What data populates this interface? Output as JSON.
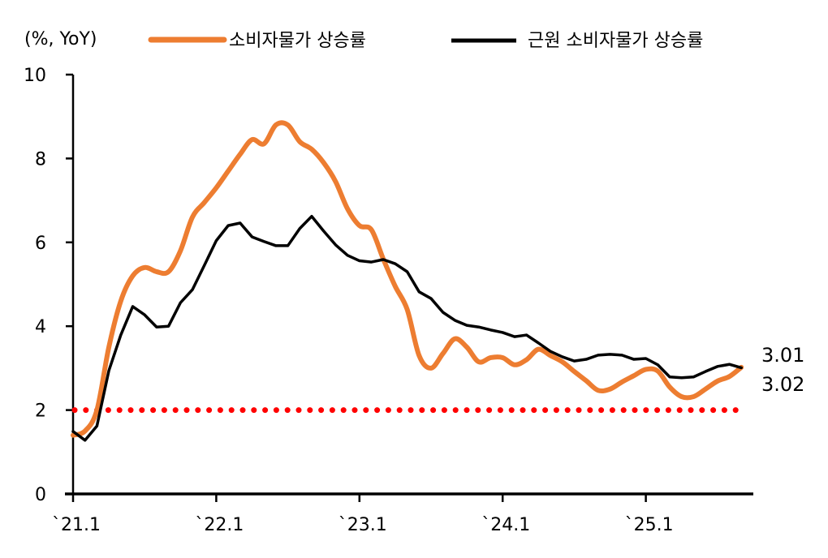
{
  "chart_data": {
    "type": "line",
    "unit_label": "(%, YoY)",
    "x_tick_labels": [
      "`21.1",
      "`22.1",
      "`23.1",
      "`24.1",
      "`25.1"
    ],
    "x_start": "2021-01",
    "x_end": "2025-09",
    "x_frequency": "monthly",
    "y_ticks": [
      0,
      2,
      4,
      6,
      8,
      10
    ],
    "ylim": [
      0,
      10
    ],
    "grid": false,
    "legend_position": "top",
    "reference_line": {
      "value": 2,
      "color": "#ff0000",
      "style": "dotted"
    },
    "series": [
      {
        "name": "소비자물가 상승률",
        "color": "#ed7d31",
        "smooth": true,
        "end_label": "3.02",
        "values": [
          1.4,
          1.5,
          2.0,
          3.5,
          4.6,
          5.2,
          5.4,
          5.3,
          5.3,
          5.8,
          6.6,
          6.95,
          7.3,
          7.7,
          8.1,
          8.45,
          8.35,
          8.8,
          8.8,
          8.4,
          8.22,
          7.9,
          7.45,
          6.8,
          6.4,
          6.3,
          5.6,
          4.95,
          4.4,
          3.3,
          3.0,
          3.35,
          3.7,
          3.5,
          3.15,
          3.25,
          3.25,
          3.08,
          3.2,
          3.45,
          3.3,
          3.15,
          2.92,
          2.7,
          2.47,
          2.5,
          2.67,
          2.82,
          2.97,
          2.93,
          2.55,
          2.32,
          2.32,
          2.5,
          2.69,
          2.8,
          3.02
        ]
      },
      {
        "name": "근원 소비자물가 상승률",
        "color": "#000000",
        "smooth": false,
        "end_label": "3.01",
        "values": [
          1.49,
          1.28,
          1.62,
          2.94,
          3.79,
          4.47,
          4.27,
          3.98,
          4.0,
          4.56,
          4.87,
          5.45,
          6.04,
          6.4,
          6.46,
          6.13,
          6.02,
          5.92,
          5.92,
          6.33,
          6.62,
          6.27,
          5.94,
          5.69,
          5.56,
          5.53,
          5.59,
          5.49,
          5.3,
          4.82,
          4.66,
          4.33,
          4.14,
          4.02,
          3.98,
          3.91,
          3.85,
          3.75,
          3.79,
          3.6,
          3.4,
          3.27,
          3.17,
          3.21,
          3.31,
          3.33,
          3.31,
          3.21,
          3.23,
          3.08,
          2.79,
          2.77,
          2.79,
          2.92,
          3.04,
          3.09,
          3.01
        ]
      }
    ]
  }
}
